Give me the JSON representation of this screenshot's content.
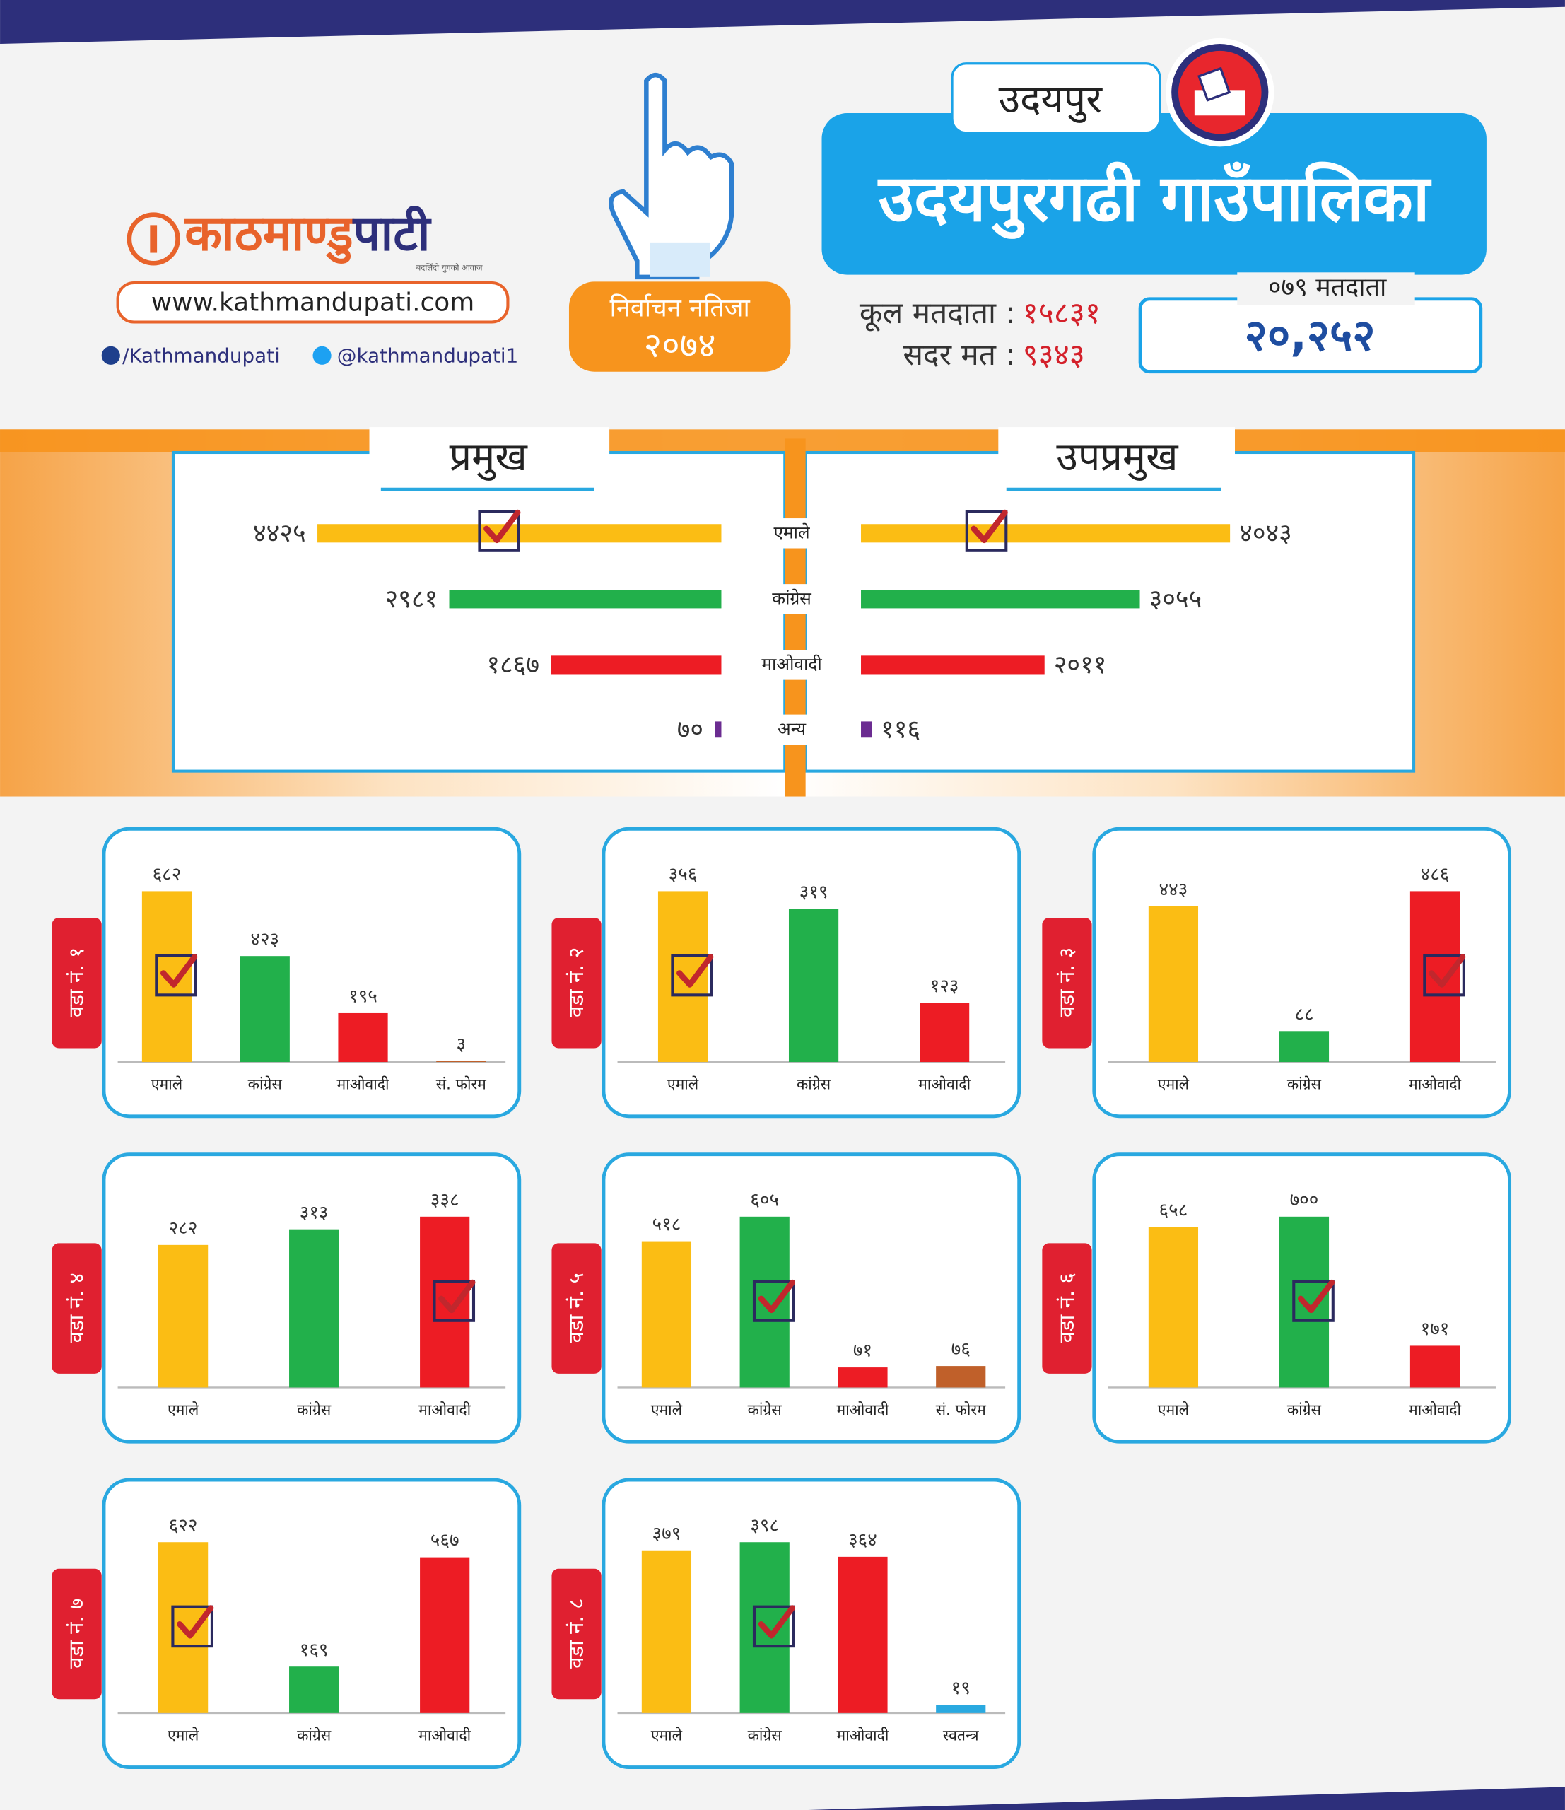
{
  "header": {
    "logo_part1": "काठमाण्डु",
    "logo_part2": "पाटी",
    "tagline": "बदलिँदो युगको आवाज",
    "website": "www.kathmandupati.com",
    "facebook": "/Kathmandupati",
    "twitter": "@kathmandupati1",
    "badge_title": "निर्वाचन नतिजा",
    "badge_year": "२०७४",
    "district": "उदयपुर",
    "municipality": "उदयपुरगढी गाउँपालिका",
    "total_voters_label": "कूल मतदाता :",
    "total_voters": "१५८३१",
    "valid_votes_label": "सदर मत :",
    "valid_votes": "९३४३",
    "voters_079_label": "०७९ मतदाता",
    "voters_079": "२०,२५२"
  },
  "chart_data": [
    {
      "type": "butterfly",
      "categories": [
        "एमाले",
        "कांग्रेस",
        "माओवादी",
        "अन्य"
      ],
      "colors": [
        "#fbbd14",
        "#22b04b",
        "#ed1c24",
        "#6b2c91"
      ],
      "series": [
        {
          "name": "प्रमुख",
          "values": [
            4425,
            2981,
            1867,
            70
          ],
          "value_labels": [
            "४४२५",
            "२९८१",
            "१८६७",
            "७०"
          ]
        },
        {
          "name": "उपप्रमुख",
          "values": [
            4043,
            3055,
            2011,
            116
          ],
          "value_labels": [
            "४०४३",
            "३०५५",
            "२०११",
            "११६"
          ]
        }
      ]
    },
    {
      "type": "bar",
      "title": "वडा नं. १",
      "categories": [
        "एमाले",
        "कांग्रेस",
        "माओवादी",
        "सं. फोरम"
      ],
      "colors": [
        "#fbbd14",
        "#22b04b",
        "#ed1c24",
        "#c0602a"
      ],
      "values": [
        682,
        423,
        195,
        3
      ],
      "value_labels": [
        "६८२",
        "४२३",
        "१९५",
        "३"
      ]
    },
    {
      "type": "bar",
      "title": "वडा नं. २",
      "categories": [
        "एमाले",
        "कांग्रेस",
        "माओवादी"
      ],
      "colors": [
        "#fbbd14",
        "#22b04b",
        "#ed1c24"
      ],
      "values": [
        356,
        319,
        123
      ],
      "value_labels": [
        "३५६",
        "३१९",
        "१२३"
      ]
    },
    {
      "type": "bar",
      "title": "वडा नं. ३",
      "categories": [
        "एमाले",
        "कांग्रेस",
        "माओवादी"
      ],
      "colors": [
        "#fbbd14",
        "#22b04b",
        "#ed1c24"
      ],
      "values": [
        443,
        88,
        486
      ],
      "value_labels": [
        "४४३",
        "८८",
        "४८६"
      ]
    },
    {
      "type": "bar",
      "title": "वडा नं. ४",
      "categories": [
        "एमाले",
        "कांग्रेस",
        "माओवादी"
      ],
      "colors": [
        "#fbbd14",
        "#22b04b",
        "#ed1c24"
      ],
      "values": [
        282,
        313,
        338
      ],
      "value_labels": [
        "२८२",
        "३१३",
        "३३८"
      ]
    },
    {
      "type": "bar",
      "title": "वडा नं. ५",
      "categories": [
        "एमाले",
        "कांग्रेस",
        "माओवादी",
        "सं. फोरम"
      ],
      "colors": [
        "#fbbd14",
        "#22b04b",
        "#ed1c24",
        "#c0602a"
      ],
      "values": [
        518,
        605,
        71,
        76
      ],
      "value_labels": [
        "५१८",
        "६०५",
        "७१",
        "७६"
      ]
    },
    {
      "type": "bar",
      "title": "वडा नं. ६",
      "categories": [
        "एमाले",
        "कांग्रेस",
        "माओवादी"
      ],
      "colors": [
        "#fbbd14",
        "#22b04b",
        "#ed1c24"
      ],
      "values": [
        658,
        700,
        171
      ],
      "value_labels": [
        "६५८",
        "७००",
        "१७१"
      ]
    },
    {
      "type": "bar",
      "title": "वडा नं. ७",
      "categories": [
        "एमाले",
        "कांग्रेस",
        "माओवादी"
      ],
      "colors": [
        "#fbbd14",
        "#22b04b",
        "#ed1c24"
      ],
      "values": [
        622,
        169,
        567
      ],
      "value_labels": [
        "६२२",
        "१६९",
        "५६७"
      ]
    },
    {
      "type": "bar",
      "title": "वडा नं. ८",
      "categories": [
        "एमाले",
        "कांग्रेस",
        "माओवादी",
        "स्वतन्त्र"
      ],
      "colors": [
        "#fbbd14",
        "#22b04b",
        "#ed1c24",
        "#2aa9e0"
      ],
      "values": [
        379,
        398,
        364,
        19
      ],
      "value_labels": [
        "३७९",
        "३९८",
        "३६४",
        "१९"
      ]
    }
  ]
}
